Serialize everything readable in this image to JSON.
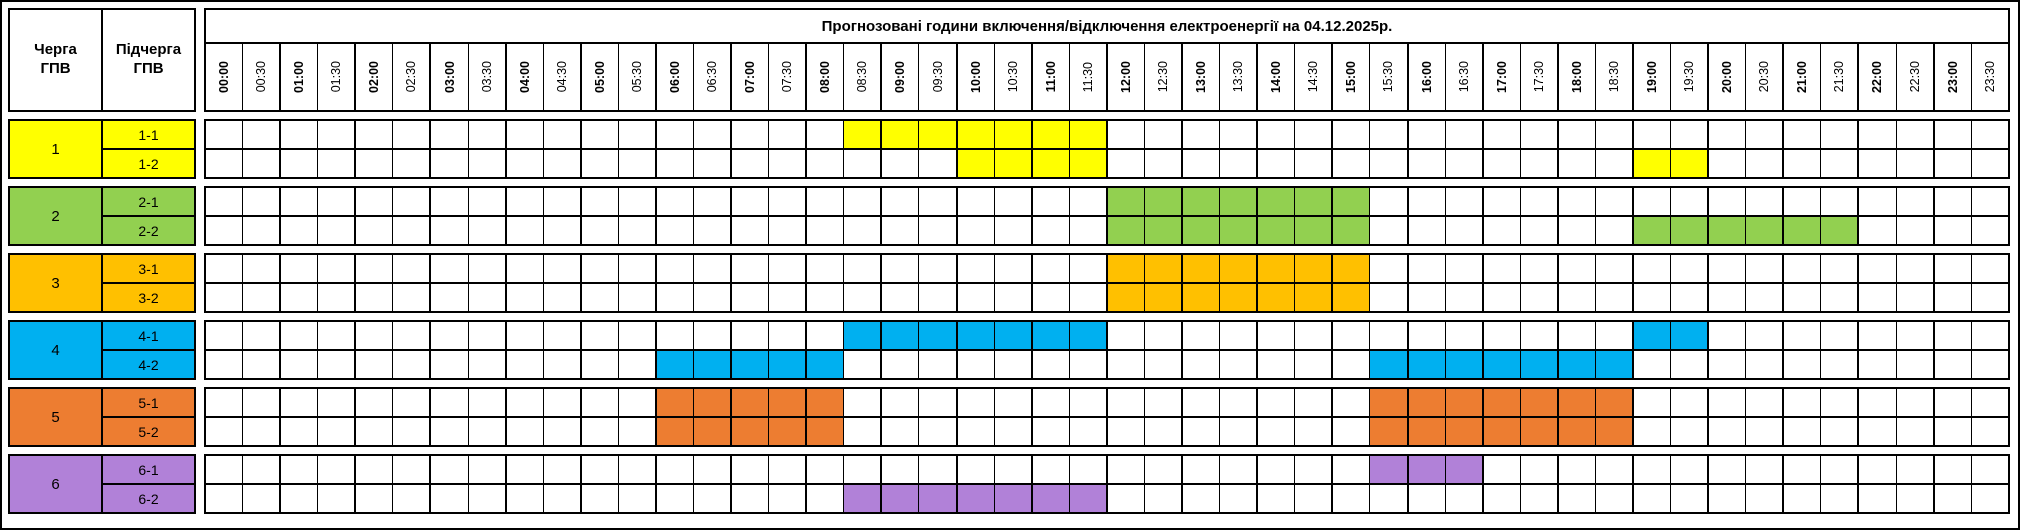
{
  "title": "Прогнозовані години включення/відключення електроенергії на 04.12.2025р.",
  "left_header": {
    "queue": "Черга ГПВ",
    "subqueue": "Підчерга ГПВ"
  },
  "time_slots": [
    "00:00",
    "00:30",
    "01:00",
    "01:30",
    "02:00",
    "02:30",
    "03:00",
    "03:30",
    "04:00",
    "04:30",
    "05:00",
    "05:30",
    "06:00",
    "06:30",
    "07:00",
    "07:30",
    "08:00",
    "08:30",
    "09:00",
    "09:30",
    "10:00",
    "10:30",
    "11:00",
    "11:30",
    "12:00",
    "12:30",
    "13:00",
    "13:30",
    "14:00",
    "14:30",
    "15:00",
    "15:30",
    "16:00",
    "16:30",
    "17:00",
    "17:30",
    "18:00",
    "18:30",
    "19:00",
    "19:30",
    "20:00",
    "20:30",
    "21:00",
    "21:30",
    "22:00",
    "22:30",
    "23:00",
    "23:30"
  ],
  "chart_data": {
    "type": "table",
    "title": "Прогнозовані години включення/відключення електроенергії на 04.12.2025р.",
    "columns": [
      "00:00",
      "00:30",
      "01:00",
      "01:30",
      "02:00",
      "02:30",
      "03:00",
      "03:30",
      "04:00",
      "04:30",
      "05:00",
      "05:30",
      "06:00",
      "06:30",
      "07:00",
      "07:30",
      "08:00",
      "08:30",
      "09:00",
      "09:30",
      "10:00",
      "10:30",
      "11:00",
      "11:30",
      "12:00",
      "12:30",
      "13:00",
      "13:30",
      "14:00",
      "14:30",
      "15:00",
      "15:30",
      "16:00",
      "16:30",
      "17:00",
      "17:30",
      "18:00",
      "18:30",
      "19:00",
      "19:30",
      "20:00",
      "20:30",
      "21:00",
      "21:30",
      "22:00",
      "22:30",
      "23:00",
      "23:30"
    ],
    "slot_minutes": 30,
    "legend": "colored cell = scheduled outage interval for that sub-queue",
    "rows": [
      {
        "queue": "1",
        "subqueue": "1-1",
        "color": "#FFFF00",
        "off": [
          [
            "08:30",
            "12:00"
          ]
        ]
      },
      {
        "queue": "1",
        "subqueue": "1-2",
        "color": "#FFFF00",
        "off": [
          [
            "10:00",
            "12:00"
          ],
          [
            "19:00",
            "20:00"
          ]
        ]
      },
      {
        "queue": "2",
        "subqueue": "2-1",
        "color": "#92D050",
        "off": [
          [
            "12:00",
            "15:30"
          ]
        ]
      },
      {
        "queue": "2",
        "subqueue": "2-2",
        "color": "#92D050",
        "off": [
          [
            "12:00",
            "15:30"
          ],
          [
            "19:00",
            "22:00"
          ]
        ]
      },
      {
        "queue": "3",
        "subqueue": "3-1",
        "color": "#FFC000",
        "off": [
          [
            "12:00",
            "15:30"
          ]
        ]
      },
      {
        "queue": "3",
        "subqueue": "3-2",
        "color": "#FFC000",
        "off": [
          [
            "12:00",
            "15:30"
          ]
        ]
      },
      {
        "queue": "4",
        "subqueue": "4-1",
        "color": "#00B0F0",
        "off": [
          [
            "08:30",
            "12:00"
          ],
          [
            "19:00",
            "20:00"
          ]
        ]
      },
      {
        "queue": "4",
        "subqueue": "4-2",
        "color": "#00B0F0",
        "off": [
          [
            "06:00",
            "08:30"
          ],
          [
            "15:30",
            "19:00"
          ]
        ]
      },
      {
        "queue": "5",
        "subqueue": "5-1",
        "color": "#ED7D31",
        "off": [
          [
            "06:00",
            "08:30"
          ],
          [
            "15:30",
            "19:00"
          ]
        ]
      },
      {
        "queue": "5",
        "subqueue": "5-2",
        "color": "#ED7D31",
        "off": [
          [
            "06:00",
            "08:30"
          ],
          [
            "15:30",
            "19:00"
          ]
        ]
      },
      {
        "queue": "6",
        "subqueue": "6-1",
        "color": "#B181D8",
        "off": [
          [
            "15:30",
            "17:00"
          ]
        ]
      },
      {
        "queue": "6",
        "subqueue": "6-2",
        "color": "#B181D8",
        "off": [
          [
            "08:30",
            "12:00"
          ]
        ]
      }
    ]
  }
}
